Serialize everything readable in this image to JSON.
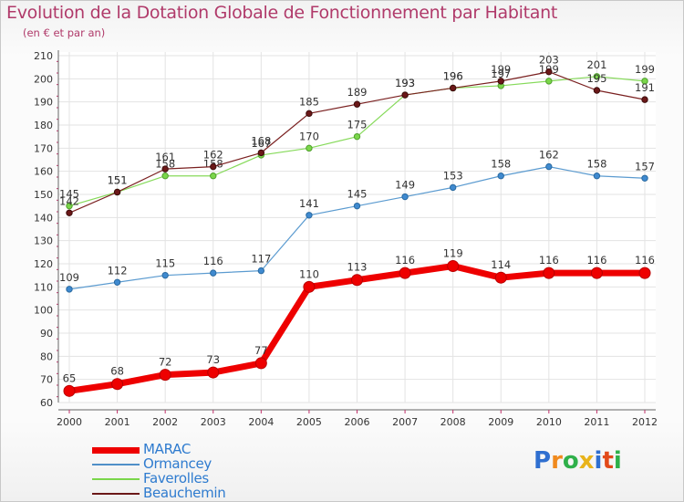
{
  "chart_data": {
    "type": "line",
    "title": "Evolution de la Dotation Globale de Fonctionnement par Habitant",
    "subtitle": "(en € et par an)",
    "xlabel": "",
    "ylabel": "",
    "ylim": [
      60,
      210
    ],
    "yticks": [
      60,
      70,
      80,
      90,
      100,
      110,
      120,
      130,
      140,
      150,
      160,
      170,
      180,
      190,
      200,
      210
    ],
    "x": [
      "2000",
      "2001",
      "2002",
      "2003",
      "2004",
      "2005",
      "2006",
      "2007",
      "2008",
      "2009",
      "2010",
      "2011",
      "2012"
    ],
    "grid": true,
    "legend_position": "bottom-left",
    "series": [
      {
        "name": "MARAC",
        "color": "#ee0000",
        "values": [
          65,
          68,
          72,
          73,
          77,
          110,
          113,
          116,
          119,
          114,
          116,
          116,
          116
        ]
      },
      {
        "name": "Ormancey",
        "color": "#4f8fc8",
        "values": [
          109,
          112,
          115,
          116,
          117,
          141,
          145,
          149,
          153,
          158,
          162,
          158,
          157
        ]
      },
      {
        "name": "Faverolles",
        "color": "#7ad64a",
        "values": [
          145,
          151,
          158,
          158,
          167,
          170,
          175,
          193,
          196,
          197,
          199,
          201,
          199
        ]
      },
      {
        "name": "Beauchemin",
        "color": "#6b1818",
        "values": [
          142,
          151,
          161,
          162,
          168,
          185,
          189,
          193,
          196,
          199,
          203,
          195,
          191
        ]
      }
    ]
  },
  "logo": {
    "letters": [
      "P",
      "r",
      "o",
      "x",
      "i",
      "t",
      "i"
    ],
    "colors": [
      "#2f6fd0",
      "#f08a1e",
      "#2fb04a",
      "#e8b31a",
      "#2f6fd0",
      "#e24a1a",
      "#2fb04a"
    ]
  }
}
